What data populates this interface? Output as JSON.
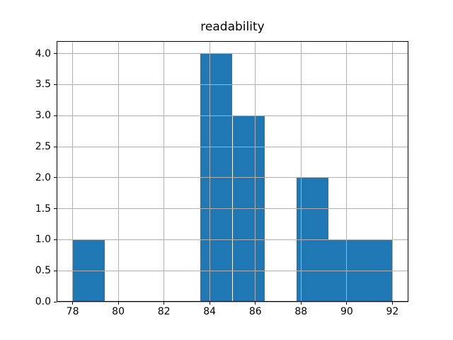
{
  "title": "readability",
  "chart_data": {
    "type": "bar",
    "subtype": "histogram",
    "title": "readability",
    "xlabel": "",
    "ylabel": "",
    "bin_edges": [
      78.0,
      79.4,
      80.8,
      82.2,
      83.6,
      85.0,
      86.4,
      87.8,
      89.2,
      90.6,
      92.0
    ],
    "counts": [
      1,
      0,
      0,
      0,
      4,
      3,
      0,
      2,
      1,
      1
    ],
    "xlim": [
      77.3,
      92.7
    ],
    "ylim": [
      0,
      4.2
    ],
    "x_ticks": [
      78,
      80,
      82,
      84,
      86,
      88,
      90,
      92
    ],
    "x_tick_labels": [
      "78",
      "80",
      "82",
      "84",
      "86",
      "88",
      "90",
      "92"
    ],
    "y_ticks": [
      0.0,
      0.5,
      1.0,
      1.5,
      2.0,
      2.5,
      3.0,
      3.5,
      4.0
    ],
    "y_tick_labels": [
      "0.0",
      "0.5",
      "1.0",
      "1.5",
      "2.0",
      "2.5",
      "3.0",
      "3.5",
      "4.0"
    ],
    "grid": true,
    "grid_position": "above-bars",
    "legend": null,
    "colors": {
      "bar": "#1f77b4",
      "grid": "#b0b0b0",
      "spine": "#000000",
      "text": "#000000",
      "background": "#ffffff"
    }
  }
}
